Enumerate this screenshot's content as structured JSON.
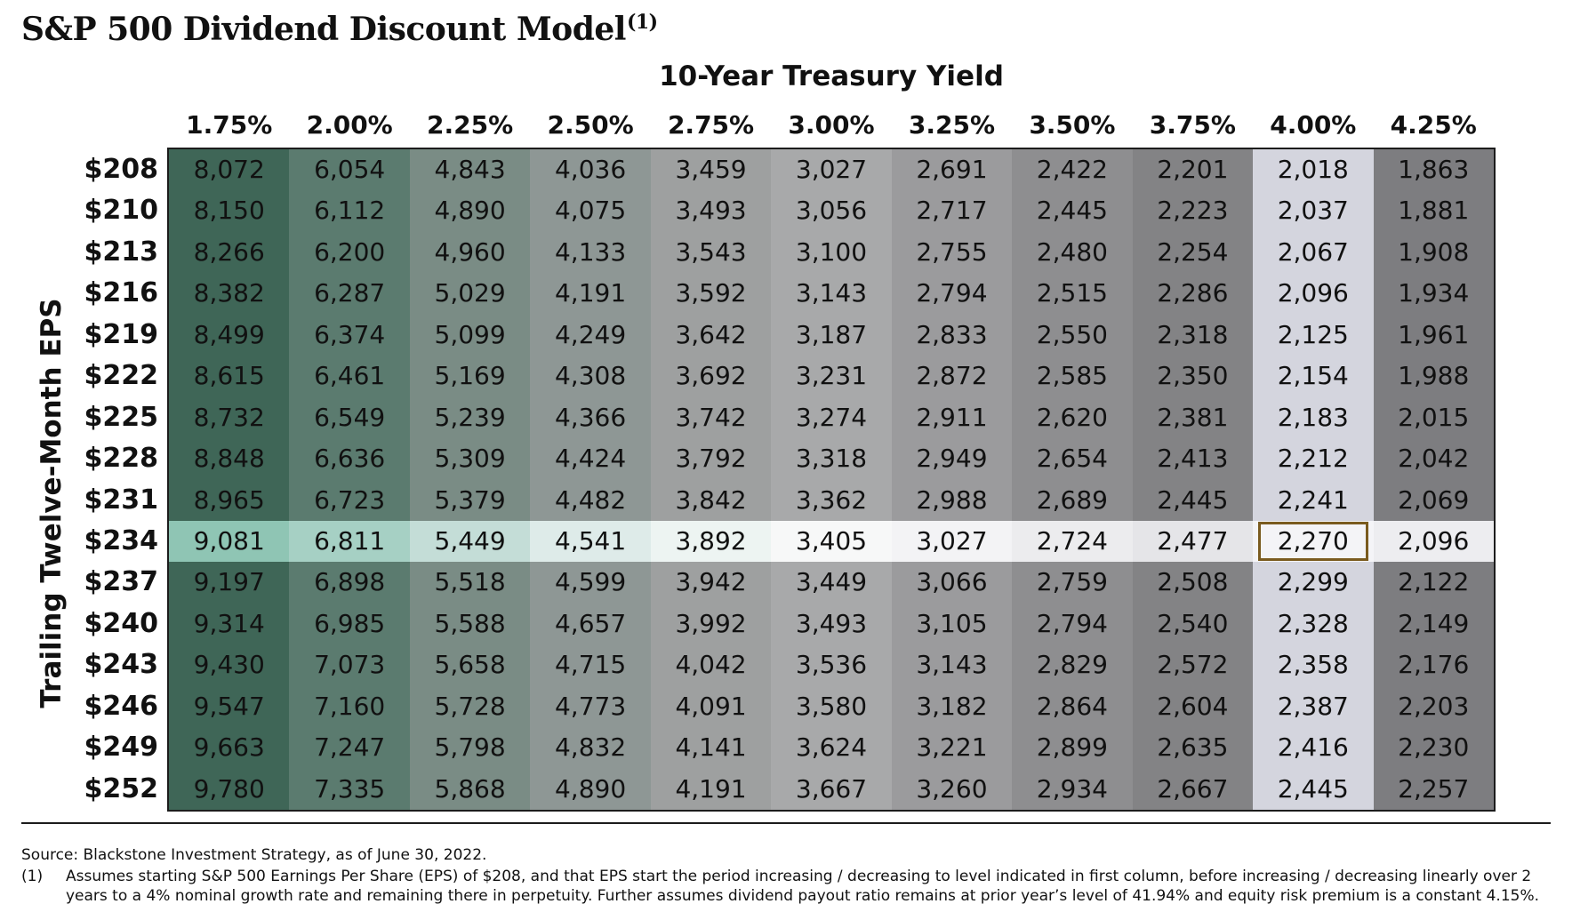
{
  "page": {
    "title": "S&P 500 Dividend Discount Model",
    "title_superscript": "(1)"
  },
  "chart_data": {
    "type": "table",
    "title": "S&P 500 Dividend Discount Model",
    "xlabel": "10-Year Treasury Yield",
    "ylabel": "Trailing Twelve-Month EPS",
    "columns": [
      "1.75%",
      "2.00%",
      "2.25%",
      "2.50%",
      "2.75%",
      "3.00%",
      "3.25%",
      "3.50%",
      "3.75%",
      "4.00%",
      "4.25%"
    ],
    "rows": [
      "$208",
      "$210",
      "$213",
      "$216",
      "$219",
      "$222",
      "$225",
      "$228",
      "$231",
      "$234",
      "$237",
      "$240",
      "$243",
      "$246",
      "$249",
      "$252"
    ],
    "values": [
      [
        "8,072",
        "6,054",
        "4,843",
        "4,036",
        "3,459",
        "3,027",
        "2,691",
        "2,422",
        "2,201",
        "2,018",
        "1,863"
      ],
      [
        "8,150",
        "6,112",
        "4,890",
        "4,075",
        "3,493",
        "3,056",
        "2,717",
        "2,445",
        "2,223",
        "2,037",
        "1,881"
      ],
      [
        "8,266",
        "6,200",
        "4,960",
        "4,133",
        "3,543",
        "3,100",
        "2,755",
        "2,480",
        "2,254",
        "2,067",
        "1,908"
      ],
      [
        "8,382",
        "6,287",
        "5,029",
        "4,191",
        "3,592",
        "3,143",
        "2,794",
        "2,515",
        "2,286",
        "2,096",
        "1,934"
      ],
      [
        "8,499",
        "6,374",
        "5,099",
        "4,249",
        "3,642",
        "3,187",
        "2,833",
        "2,550",
        "2,318",
        "2,125",
        "1,961"
      ],
      [
        "8,615",
        "6,461",
        "5,169",
        "4,308",
        "3,692",
        "3,231",
        "2,872",
        "2,585",
        "2,350",
        "2,154",
        "1,988"
      ],
      [
        "8,732",
        "6,549",
        "5,239",
        "4,366",
        "3,742",
        "3,274",
        "2,911",
        "2,620",
        "2,381",
        "2,183",
        "2,015"
      ],
      [
        "8,848",
        "6,636",
        "5,309",
        "4,424",
        "3,792",
        "3,318",
        "2,949",
        "2,654",
        "2,413",
        "2,212",
        "2,042"
      ],
      [
        "8,965",
        "6,723",
        "5,379",
        "4,482",
        "3,842",
        "3,362",
        "2,988",
        "2,689",
        "2,445",
        "2,241",
        "2,069"
      ],
      [
        "9,081",
        "6,811",
        "5,449",
        "4,541",
        "3,892",
        "3,405",
        "3,027",
        "2,724",
        "2,477",
        "2,270",
        "2,096"
      ],
      [
        "9,197",
        "6,898",
        "5,518",
        "4,599",
        "3,942",
        "3,449",
        "3,066",
        "2,759",
        "2,508",
        "2,299",
        "2,122"
      ],
      [
        "9,314",
        "6,985",
        "5,588",
        "4,657",
        "3,992",
        "3,493",
        "3,105",
        "2,794",
        "2,540",
        "2,328",
        "2,149"
      ],
      [
        "9,430",
        "7,073",
        "5,658",
        "4,715",
        "4,042",
        "3,536",
        "3,143",
        "2,829",
        "2,572",
        "2,358",
        "2,176"
      ],
      [
        "9,547",
        "7,160",
        "5,728",
        "4,773",
        "4,091",
        "3,580",
        "3,182",
        "2,864",
        "2,604",
        "2,387",
        "2,203"
      ],
      [
        "9,663",
        "7,247",
        "5,798",
        "4,832",
        "4,141",
        "3,624",
        "3,221",
        "2,899",
        "2,635",
        "2,416",
        "2,230"
      ],
      [
        "9,780",
        "7,335",
        "5,868",
        "4,890",
        "4,191",
        "3,667",
        "3,260",
        "2,934",
        "2,667",
        "2,445",
        "2,257"
      ]
    ],
    "highlight_row": "$234",
    "highlight_column": "4.00%",
    "boxed_cell": {
      "row": "$234",
      "column": "4.00%",
      "value": "2,270"
    },
    "column_colors": [
      "#3f6657",
      "#5b7b6f",
      "#7a8c85",
      "#8e9795",
      "#9ea0a0",
      "#a8a9aa",
      "#9b9b9d",
      "#8e8e90",
      "#838385",
      "#d4d5de",
      "#7d7d80"
    ],
    "highlight_row_colors": [
      "#8fc5b4",
      "#a6d0c4",
      "#c4ddd7",
      "#deebe9",
      "#edf4f2",
      "#f7f8f8",
      "#f3f3f5",
      "#ececee",
      "#e5e5e8",
      "#f4f4f7",
      "#ededf0"
    ],
    "colors": {
      "border": "#1c1c1c",
      "boxed_cell_outline": "#7a5b1f",
      "text": "#111111"
    }
  },
  "footer": {
    "source": "Source: Blackstone Investment Strategy, as of June 30, 2022.",
    "footnote_marker": "(1)",
    "footnote_text": "Assumes starting S&P 500 Earnings Per Share (EPS) of $208, and that EPS start the period increasing / decreasing to level indicated in first column, before increasing / decreasing linearly over 2 years to a 4% nominal growth rate and remaining there in perpetuity. Further assumes dividend payout ratio remains at prior year’s level of 41.94% and equity risk premium is a constant 4.15%."
  }
}
